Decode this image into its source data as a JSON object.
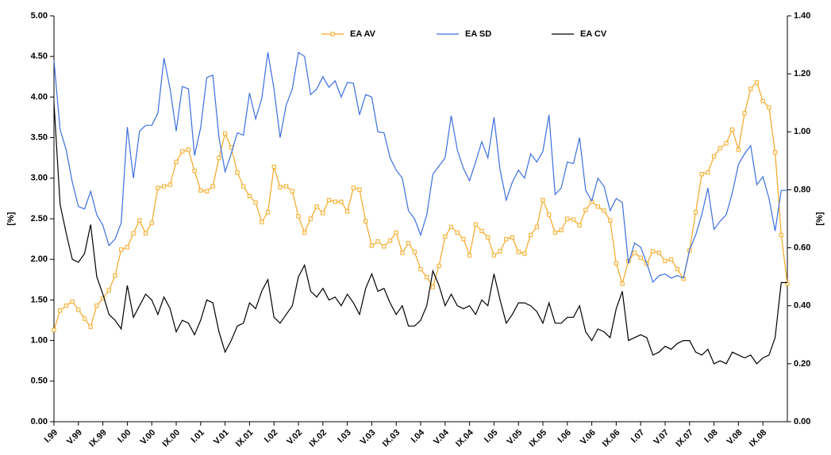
{
  "chart_data": {
    "type": "line",
    "y_label": "[%]",
    "y2_label": "[%]",
    "categories": [
      "I.99",
      null,
      null,
      null,
      "V.99",
      null,
      null,
      null,
      "IX.99",
      null,
      null,
      null,
      "I.00",
      null,
      null,
      null,
      "V.00",
      null,
      null,
      null,
      "IX.00",
      null,
      null,
      null,
      "I.01",
      null,
      null,
      null,
      "V.01",
      null,
      null,
      null,
      "IX.01",
      null,
      null,
      null,
      "I.02",
      null,
      null,
      null,
      "V.02",
      null,
      null,
      null,
      "IX.02",
      null,
      null,
      null,
      "I.03",
      null,
      null,
      null,
      "V.03",
      null,
      null,
      null,
      "IX.03",
      null,
      null,
      null,
      "I.04",
      null,
      null,
      null,
      "V.04",
      null,
      null,
      null,
      "IX.04",
      null,
      null,
      null,
      "I.05",
      null,
      null,
      null,
      "V.05",
      null,
      null,
      null,
      "IX.05",
      null,
      null,
      null,
      "I.06",
      null,
      null,
      null,
      "V.06",
      null,
      null,
      null,
      "IX.06",
      null,
      null,
      null,
      "I.07",
      null,
      null,
      null,
      "V.07",
      null,
      null,
      null,
      "IX.07",
      null,
      null,
      null,
      "I.08",
      null,
      null,
      null,
      "V.08",
      null,
      null,
      null,
      "IX.08",
      null,
      null,
      null,
      null
    ],
    "series": [
      {
        "name": "EA AV",
        "color": "#f5a623",
        "marker": "square",
        "values": [
          1.13,
          1.37,
          1.43,
          1.48,
          1.38,
          1.27,
          1.17,
          1.43,
          1.52,
          1.62,
          1.8,
          2.12,
          2.15,
          2.32,
          2.48,
          2.32,
          2.45,
          2.88,
          2.9,
          2.92,
          3.2,
          3.33,
          3.35,
          3.09,
          2.85,
          2.84,
          2.9,
          3.25,
          3.55,
          3.38,
          3.07,
          2.9,
          2.78,
          2.7,
          2.46,
          2.58,
          3.14,
          2.89,
          2.9,
          2.84,
          2.53,
          2.33,
          2.5,
          2.65,
          2.57,
          2.73,
          2.71,
          2.71,
          2.59,
          2.88,
          2.86,
          2.47,
          2.17,
          2.22,
          2.16,
          2.23,
          2.33,
          2.08,
          2.2,
          2.09,
          1.88,
          1.78,
          1.66,
          1.92,
          2.28,
          2.4,
          2.33,
          2.25,
          2.05,
          2.43,
          2.35,
          2.27,
          2.05,
          2.1,
          2.25,
          2.27,
          2.09,
          2.07,
          2.3,
          2.4,
          2.73,
          2.55,
          2.33,
          2.36,
          2.5,
          2.49,
          2.42,
          2.61,
          2.71,
          2.65,
          2.6,
          2.48,
          1.95,
          1.7,
          1.98,
          2.08,
          2.02,
          1.95,
          2.1,
          2.08,
          1.98,
          2.0,
          1.88,
          1.76,
          2.11,
          2.58,
          3.05,
          3.07,
          3.27,
          3.37,
          3.43,
          3.6,
          3.35,
          3.8,
          4.1,
          4.18,
          3.95,
          3.87,
          3.32,
          2.3,
          1.7
        ]
      },
      {
        "name": "EA SD",
        "color": "#3c6fe0",
        "values": [
          4.45,
          3.6,
          3.35,
          2.95,
          2.65,
          2.62,
          2.84,
          2.55,
          2.42,
          2.17,
          2.25,
          2.45,
          3.63,
          3.0,
          3.58,
          3.65,
          3.65,
          3.8,
          4.48,
          4.1,
          3.58,
          4.13,
          4.1,
          3.28,
          3.62,
          4.24,
          4.27,
          3.5,
          3.08,
          3.3,
          3.56,
          3.53,
          4.05,
          3.73,
          3.98,
          4.55,
          4.1,
          3.5,
          3.9,
          4.1,
          4.55,
          4.5,
          4.03,
          4.1,
          4.25,
          4.12,
          4.2,
          4.0,
          4.18,
          4.17,
          3.78,
          4.03,
          4.0,
          3.57,
          3.56,
          3.25,
          3.1,
          3.0,
          2.6,
          2.5,
          2.3,
          2.55,
          3.05,
          3.15,
          3.25,
          3.77,
          3.35,
          3.12,
          2.97,
          3.2,
          3.45,
          3.25,
          3.75,
          3.1,
          2.73,
          2.95,
          3.1,
          3.0,
          3.3,
          3.2,
          3.33,
          3.78,
          2.8,
          2.88,
          3.2,
          3.18,
          3.5,
          2.85,
          2.72,
          3.0,
          2.9,
          2.6,
          2.75,
          2.7,
          1.95,
          2.2,
          2.15,
          1.95,
          1.72,
          1.8,
          1.82,
          1.77,
          1.8,
          1.77,
          2.12,
          2.3,
          2.55,
          2.88,
          2.37,
          2.47,
          2.55,
          2.82,
          3.17,
          3.3,
          3.4,
          2.92,
          3.02,
          2.75,
          2.35,
          2.85,
          2.85
        ]
      },
      {
        "name": "EA CV",
        "color": "#000000",
        "axis": "y2",
        "values": [
          1.1,
          0.75,
          0.65,
          0.56,
          0.55,
          0.58,
          0.68,
          0.5,
          0.44,
          0.37,
          0.35,
          0.32,
          0.47,
          0.36,
          0.4,
          0.44,
          0.42,
          0.37,
          0.43,
          0.39,
          0.31,
          0.35,
          0.34,
          0.3,
          0.35,
          0.42,
          0.41,
          0.31,
          0.24,
          0.28,
          0.33,
          0.34,
          0.41,
          0.39,
          0.45,
          0.49,
          0.36,
          0.34,
          0.37,
          0.4,
          0.5,
          0.54,
          0.45,
          0.43,
          0.46,
          0.42,
          0.43,
          0.4,
          0.44,
          0.41,
          0.37,
          0.46,
          0.51,
          0.45,
          0.46,
          0.41,
          0.37,
          0.4,
          0.33,
          0.33,
          0.35,
          0.4,
          0.52,
          0.47,
          0.4,
          0.44,
          0.4,
          0.39,
          0.4,
          0.37,
          0.42,
          0.4,
          0.51,
          0.42,
          0.34,
          0.37,
          0.41,
          0.41,
          0.4,
          0.38,
          0.34,
          0.41,
          0.34,
          0.34,
          0.36,
          0.36,
          0.4,
          0.31,
          0.28,
          0.32,
          0.31,
          0.29,
          0.39,
          0.45,
          0.28,
          0.29,
          0.3,
          0.29,
          0.23,
          0.24,
          0.26,
          0.25,
          0.27,
          0.28,
          0.28,
          0.24,
          0.23,
          0.25,
          0.2,
          0.21,
          0.2,
          0.24,
          0.23,
          0.22,
          0.23,
          0.2,
          0.22,
          0.23,
          0.29,
          0.48,
          0.48
        ]
      }
    ],
    "ylim": [
      0,
      5
    ],
    "yticks": [
      {
        "value": 0,
        "label": "0.00"
      },
      {
        "value": 0.5,
        "label": "0.50"
      },
      {
        "value": 1,
        "label": "1.00"
      },
      {
        "value": 1.5,
        "label": "1.50"
      },
      {
        "value": 2,
        "label": "2.00"
      },
      {
        "value": 2.5,
        "label": "2.50"
      },
      {
        "value": 3,
        "label": "3.00"
      },
      {
        "value": 3.5,
        "label": "3.50"
      },
      {
        "value": 4,
        "label": "4.00"
      },
      {
        "value": 4.5,
        "label": "4.50"
      },
      {
        "value": 5,
        "label": "5.00"
      }
    ],
    "y2lim": [
      0,
      1.4
    ],
    "y2ticks": [
      {
        "value": 0,
        "label": "0.00"
      },
      {
        "value": 0.2,
        "label": "0.20"
      },
      {
        "value": 0.4,
        "label": "0.40"
      },
      {
        "value": 0.6,
        "label": "0.60"
      },
      {
        "value": 0.8,
        "label": "0.80"
      },
      {
        "value": 1,
        "label": "1.00"
      },
      {
        "value": 1.2,
        "label": "1.20"
      },
      {
        "value": 1.4,
        "label": "1.40"
      }
    ],
    "legend": "top"
  }
}
